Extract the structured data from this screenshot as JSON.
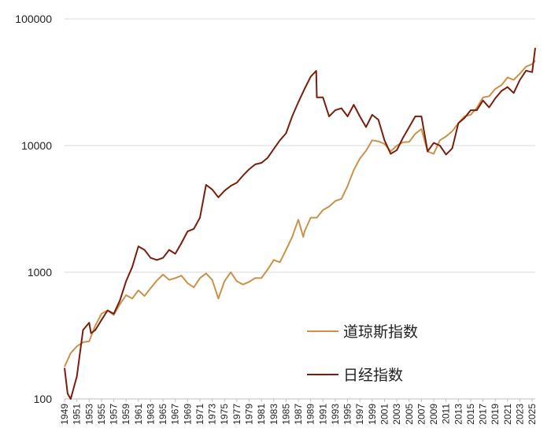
{
  "chart_data": {
    "type": "line",
    "y_scale": "log",
    "ylim": [
      100,
      100000
    ],
    "xlim": [
      1949,
      2025.5
    ],
    "yticks": [
      "100",
      "1000",
      "10000",
      "100000"
    ],
    "xticks": [
      "1949",
      "1951",
      "1953",
      "1955",
      "1957",
      "1959",
      "1961",
      "1963",
      "1965",
      "1967",
      "1969",
      "1971",
      "1973",
      "1975",
      "1977",
      "1979",
      "1981",
      "1983",
      "1985",
      "1987",
      "1989",
      "1991",
      "1993",
      "1995",
      "1997",
      "1999",
      "2001",
      "2003",
      "2005",
      "2007",
      "2009",
      "2011",
      "2013",
      "2015",
      "2017",
      "2019",
      "2021",
      "2023",
      "2025"
    ],
    "grid": "horizontal",
    "legend_position": "lower-right",
    "series": [
      {
        "name": "道琼斯指数",
        "color": "#C8924A",
        "x": [
          1949,
          1950,
          1951,
          1952,
          1953,
          1954,
          1955,
          1956,
          1957,
          1958,
          1959,
          1960,
          1961,
          1962,
          1963,
          1964,
          1965,
          1966,
          1967,
          1968,
          1969,
          1970,
          1971,
          1972,
          1973,
          1974,
          1975,
          1976,
          1977,
          1978,
          1979,
          1980,
          1981,
          1982,
          1983,
          1984,
          1985,
          1986,
          1987,
          1987.8,
          1988,
          1989,
          1990,
          1991,
          1992,
          1993,
          1994,
          1995,
          1996,
          1997,
          1998,
          1999,
          2000,
          2001,
          2002,
          2003,
          2004,
          2005,
          2006,
          2007,
          2008,
          2009,
          2010,
          2011,
          2012,
          2013,
          2014,
          2015,
          2016,
          2017,
          2018,
          2019,
          2020,
          2021,
          2022,
          2023,
          2024,
          2025,
          2025.5
        ],
        "y": [
          180,
          230,
          260,
          280,
          285,
          380,
          470,
          500,
          460,
          560,
          660,
          620,
          720,
          650,
          750,
          860,
          960,
          870,
          900,
          940,
          820,
          760,
          900,
          980,
          870,
          620,
          850,
          1000,
          850,
          800,
          840,
          900,
          900,
          1050,
          1250,
          1200,
          1500,
          1900,
          2600,
          1900,
          2100,
          2700,
          2700,
          3100,
          3300,
          3650,
          3800,
          4800,
          6400,
          7900,
          9100,
          11000,
          10800,
          10300,
          9000,
          10000,
          10600,
          10700,
          12400,
          13500,
          9000,
          8600,
          11000,
          11800,
          13000,
          15000,
          17000,
          17500,
          19800,
          24000,
          24500,
          28000,
          30000,
          34500,
          33000,
          37000,
          42000,
          44000,
          47000
        ]
      },
      {
        "name": "日经指数",
        "color": "#7A1E0B",
        "x": [
          1949,
          1949.5,
          1950,
          1951,
          1952,
          1953,
          1953.3,
          1954,
          1955,
          1956,
          1957,
          1958,
          1959,
          1960,
          1961,
          1962,
          1963,
          1964,
          1965,
          1966,
          1967,
          1968,
          1969,
          1970,
          1971,
          1972,
          1973,
          1974,
          1975,
          1976,
          1977,
          1978,
          1979,
          1980,
          1981,
          1982,
          1983,
          1984,
          1985,
          1986,
          1987,
          1988,
          1989,
          1989.9,
          1990,
          1991,
          1992,
          1993,
          1994,
          1995,
          1996,
          1997,
          1998,
          1999,
          2000,
          2001,
          2002,
          2003,
          2004,
          2005,
          2006,
          2007,
          2008,
          2009,
          2010,
          2011,
          2012,
          2013,
          2014,
          2015,
          2016,
          2017,
          2018,
          2019,
          2020,
          2021,
          2022,
          2023,
          2024,
          2025,
          2025.5
        ],
        "y": [
          176,
          110,
          100,
          150,
          350,
          400,
          330,
          350,
          420,
          500,
          470,
          600,
          850,
          1100,
          1600,
          1500,
          1300,
          1250,
          1300,
          1500,
          1400,
          1700,
          2100,
          2200,
          2700,
          4900,
          4500,
          3900,
          4400,
          4800,
          5100,
          5800,
          6500,
          7100,
          7300,
          8000,
          9400,
          11000,
          12500,
          17000,
          22000,
          28000,
          35000,
          38900,
          24000,
          24000,
          17000,
          19000,
          19700,
          17000,
          21000,
          17000,
          14000,
          17500,
          16000,
          11000,
          8600,
          9200,
          11500,
          14000,
          17000,
          17000,
          9000,
          10500,
          10000,
          8500,
          9500,
          15000,
          16500,
          19000,
          19000,
          22700,
          20000,
          23600,
          27000,
          29000,
          26000,
          33000,
          39000,
          38000,
          59000
        ]
      }
    ]
  },
  "legend": [
    {
      "label": "道琼斯指数",
      "color": "#C8924A"
    },
    {
      "label": "日经指数",
      "color": "#7A1E0B"
    }
  ]
}
